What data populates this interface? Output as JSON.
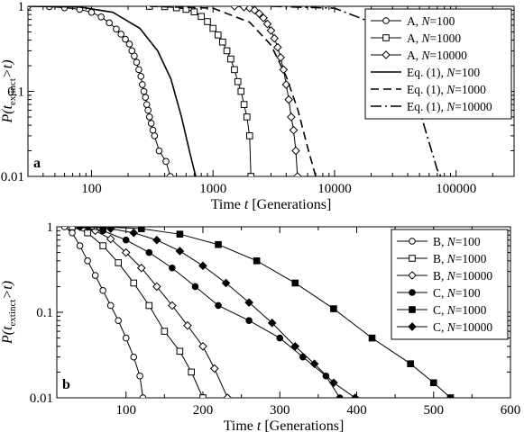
{
  "chart_data": [
    {
      "type": "line",
      "panel_label": "a",
      "xscale": "log",
      "yscale": "log",
      "xlim": [
        30,
        300000
      ],
      "ylim": [
        0.01,
        1
      ],
      "xlabel_prefix": "Time ",
      "xlabel_var": "t",
      "xlabel_suffix": " [Generations]",
      "ylabel_main": "P(t",
      "ylabel_sub": "extinct",
      "ylabel_tail": ">t)",
      "xticks": [
        100,
        1000,
        10000,
        100000
      ],
      "xtick_labels": [
        "100",
        "1000",
        "10000",
        "100000"
      ],
      "yticks": [
        1,
        0.1,
        0.01
      ],
      "ytick_labels": [
        "1",
        "0.1",
        "0.01"
      ],
      "legend_position": "top-right",
      "series": [
        {
          "name_prefix": "A, ",
          "name_var": "N",
          "name_suffix": "=100",
          "marker": "circle-open",
          "line": "solid",
          "x": [
            30,
            45,
            60,
            80,
            100,
            120,
            140,
            160,
            175,
            190,
            205,
            215,
            225,
            235,
            245,
            255,
            262,
            270,
            278,
            285,
            292,
            300,
            310,
            320,
            330,
            360,
            410,
            445
          ],
          "y": [
            1,
            0.99,
            0.96,
            0.92,
            0.85,
            0.75,
            0.64,
            0.54,
            0.47,
            0.41,
            0.36,
            0.3,
            0.26,
            0.22,
            0.18,
            0.15,
            0.12,
            0.1,
            0.085,
            0.07,
            0.06,
            0.05,
            0.042,
            0.035,
            0.03,
            0.02,
            0.015,
            0.01
          ]
        },
        {
          "name_prefix": "A, ",
          "name_var": "N",
          "name_suffix": "=1000",
          "marker": "square-open",
          "line": "solid",
          "x": [
            300,
            400,
            500,
            600,
            700,
            800,
            900,
            1000,
            1100,
            1200,
            1300,
            1400,
            1500,
            1600,
            1700,
            1800,
            1900,
            2000,
            2050
          ],
          "y": [
            1,
            0.99,
            0.96,
            0.92,
            0.86,
            0.76,
            0.66,
            0.55,
            0.46,
            0.38,
            0.3,
            0.24,
            0.18,
            0.13,
            0.1,
            0.07,
            0.05,
            0.03,
            0.01
          ]
        },
        {
          "name_prefix": "A, ",
          "name_var": "N",
          "name_suffix": "=10000",
          "marker": "diamond-open",
          "line": "solid",
          "x": [
            1500,
            1800,
            2000,
            2200,
            2400,
            2600,
            2800,
            3000,
            3200,
            3400,
            3600,
            3800,
            4000,
            4200,
            4400,
            4600,
            4800,
            4950
          ],
          "y": [
            1,
            0.98,
            0.95,
            0.9,
            0.82,
            0.73,
            0.62,
            0.52,
            0.42,
            0.33,
            0.25,
            0.18,
            0.12,
            0.08,
            0.05,
            0.035,
            0.02,
            0.01
          ]
        },
        {
          "name_prefix": "Eq. (1), ",
          "name_var": "N",
          "name_suffix": "=100",
          "marker": "none",
          "line": "solid",
          "x": [
            30,
            80,
            150,
            250,
            350,
            450,
            550,
            650,
            720
          ],
          "y": [
            1,
            0.98,
            0.85,
            0.55,
            0.3,
            0.14,
            0.05,
            0.018,
            0.01
          ]
        },
        {
          "name_prefix": "Eq. (1), ",
          "name_var": "N",
          "name_suffix": "=1000",
          "marker": "none",
          "line": "dashed",
          "x": [
            300,
            1000,
            2000,
            3000,
            4000,
            5000,
            6000,
            7000
          ],
          "y": [
            1,
            0.95,
            0.65,
            0.35,
            0.15,
            0.06,
            0.022,
            0.01
          ]
        },
        {
          "name_prefix": "Eq. (1), ",
          "name_var": "N",
          "name_suffix": "=10000",
          "marker": "none",
          "line": "dashdot",
          "x": [
            3000,
            10000,
            20000,
            30000,
            40000,
            50000,
            60000,
            70000,
            75000
          ],
          "y": [
            1,
            0.95,
            0.65,
            0.35,
            0.15,
            0.06,
            0.025,
            0.012,
            0.01
          ]
        }
      ]
    },
    {
      "type": "line",
      "panel_label": "b",
      "xscale": "linear",
      "yscale": "log",
      "xlim": [
        10,
        600
      ],
      "ylim": [
        0.01,
        1
      ],
      "xlabel_prefix": "Time ",
      "xlabel_var": "t",
      "xlabel_suffix": " [Generations]",
      "ylabel_main": "P(t",
      "ylabel_sub": "extinct",
      "ylabel_tail": ">t)",
      "xticks": [
        100,
        200,
        300,
        400,
        500,
        600
      ],
      "xtick_labels": [
        "100",
        "200",
        "300",
        "400",
        "500",
        "600"
      ],
      "yticks": [
        1,
        0.1,
        0.01
      ],
      "ytick_labels": [
        "1",
        "0.1",
        "0.01"
      ],
      "legend_position": "top-right",
      "series": [
        {
          "name_prefix": "B, ",
          "name_var": "N",
          "name_suffix": "=100",
          "marker": "circle-open",
          "line": "solid",
          "x": [
            20,
            30,
            40,
            50,
            60,
            70,
            80,
            90,
            100,
            110,
            118,
            122
          ],
          "y": [
            1,
            0.85,
            0.6,
            0.4,
            0.27,
            0.18,
            0.12,
            0.08,
            0.05,
            0.03,
            0.018,
            0.01
          ]
        },
        {
          "name_prefix": "B, ",
          "name_var": "N",
          "name_suffix": "=1000",
          "marker": "square-open",
          "line": "solid",
          "x": [
            30,
            50,
            70,
            90,
            110,
            130,
            150,
            170,
            185,
            200
          ],
          "y": [
            1,
            0.85,
            0.6,
            0.38,
            0.22,
            0.12,
            0.06,
            0.035,
            0.02,
            0.01
          ]
        },
        {
          "name_prefix": "B, ",
          "name_var": "N",
          "name_suffix": "=10000",
          "marker": "diamond-open",
          "line": "solid",
          "x": [
            40,
            60,
            80,
            100,
            120,
            140,
            160,
            180,
            200,
            215,
            232
          ],
          "y": [
            1,
            0.9,
            0.72,
            0.5,
            0.33,
            0.2,
            0.12,
            0.07,
            0.04,
            0.022,
            0.01
          ]
        },
        {
          "name_prefix": "C, ",
          "name_var": "N",
          "name_suffix": "=100",
          "marker": "circle-filled",
          "line": "solid",
          "x": [
            40,
            70,
            100,
            130,
            160,
            190,
            220,
            260,
            300,
            330,
            360,
            378
          ],
          "y": [
            1,
            0.9,
            0.7,
            0.5,
            0.33,
            0.2,
            0.12,
            0.08,
            0.05,
            0.03,
            0.018,
            0.01
          ]
        },
        {
          "name_prefix": "C, ",
          "name_var": "N",
          "name_suffix": "=1000",
          "marker": "square-filled",
          "line": "solid",
          "x": [
            70,
            120,
            170,
            220,
            270,
            320,
            370,
            420,
            470,
            500,
            522
          ],
          "y": [
            1,
            0.95,
            0.82,
            0.62,
            0.4,
            0.22,
            0.11,
            0.05,
            0.025,
            0.015,
            0.01
          ]
        },
        {
          "name_prefix": "C, ",
          "name_var": "N",
          "name_suffix": "=10000",
          "marker": "diamond-filled",
          "line": "solid",
          "x": [
            50,
            80,
            110,
            140,
            170,
            200,
            230,
            260,
            290,
            320,
            345,
            370,
            398
          ],
          "y": [
            1,
            0.95,
            0.85,
            0.7,
            0.52,
            0.35,
            0.22,
            0.13,
            0.075,
            0.04,
            0.025,
            0.015,
            0.01
          ]
        }
      ]
    }
  ]
}
